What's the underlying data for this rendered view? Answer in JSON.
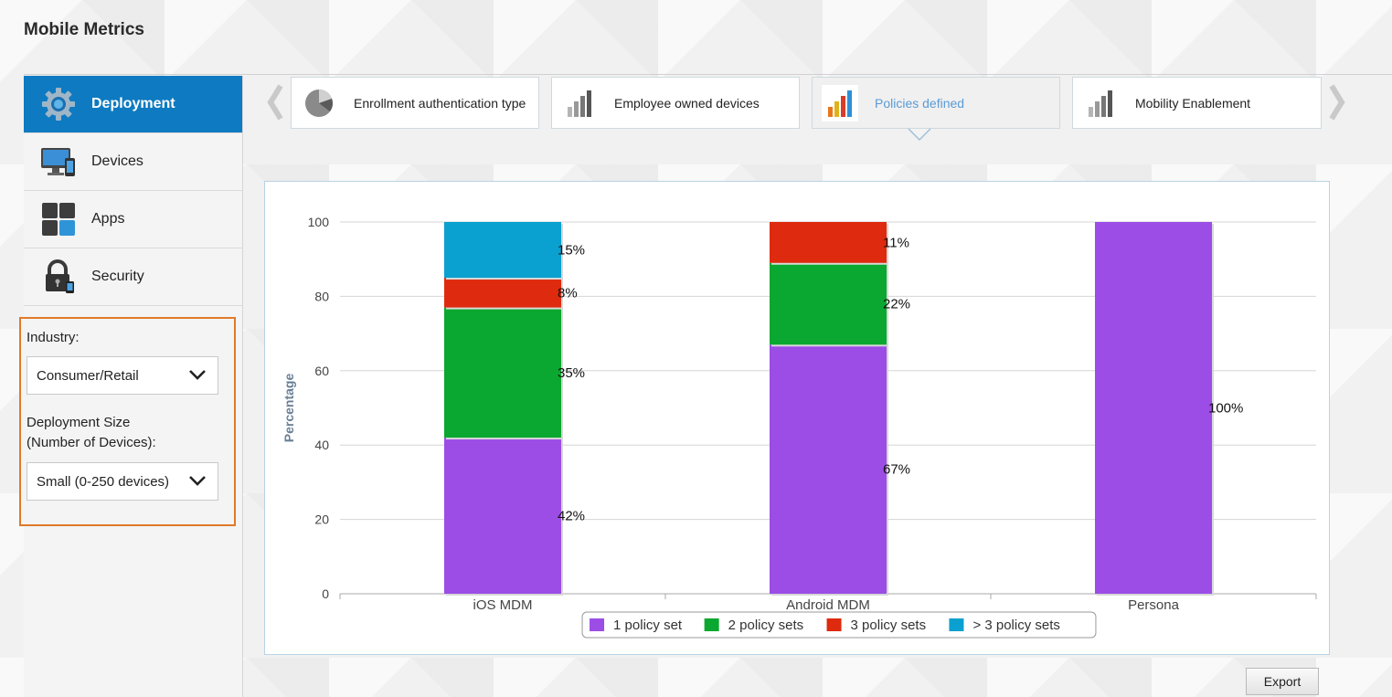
{
  "app": {
    "title": "Mobile Metrics"
  },
  "sidebar": {
    "items": [
      {
        "label": "Deployment",
        "icon": "gear-icon",
        "active": true
      },
      {
        "label": "Devices",
        "icon": "monitor-device-icon",
        "active": false
      },
      {
        "label": "Apps",
        "icon": "apps-grid-icon",
        "active": false
      },
      {
        "label": "Security",
        "icon": "lock-icon",
        "active": false
      }
    ],
    "filters": {
      "industry_label": "Industry:",
      "industry_value": "Consumer/Retail",
      "size_label_line1": "Deployment Size",
      "size_label_line2": "(Number of Devices):",
      "size_value": "Small (0-250 devices)"
    }
  },
  "carousel": {
    "tiles": [
      {
        "label": "Enrollment authentication type",
        "icon": "pie-chart-icon",
        "active": false
      },
      {
        "label": "Employee owned devices",
        "icon": "bar-chart-icon",
        "active": false
      },
      {
        "label": "Policies defined",
        "icon": "color-bar-chart-icon",
        "active": true
      },
      {
        "label": "Mobility Enablement",
        "icon": "bar-chart-icon",
        "active": false
      }
    ]
  },
  "chart_data": {
    "type": "bar",
    "stacked": true,
    "categories": [
      "iOS MDM",
      "Android MDM",
      "Persona"
    ],
    "ylabel": "Percentage",
    "ylim": [
      0,
      100
    ],
    "yticks": [
      0,
      20,
      40,
      60,
      80,
      100
    ],
    "legend_position": "bottom",
    "series": [
      {
        "name": "1 policy set",
        "color": "#9b4de6",
        "values": [
          42,
          67,
          100
        ]
      },
      {
        "name": "2 policy sets",
        "color": "#0aa830",
        "values": [
          35,
          22,
          0
        ]
      },
      {
        "name": "3 policy sets",
        "color": "#de2a0e",
        "values": [
          8,
          11,
          0
        ]
      },
      {
        "name": "> 3 policy sets",
        "color": "#0aa0d0",
        "values": [
          15,
          0,
          0
        ]
      }
    ]
  },
  "buttons": {
    "export": "Export"
  }
}
